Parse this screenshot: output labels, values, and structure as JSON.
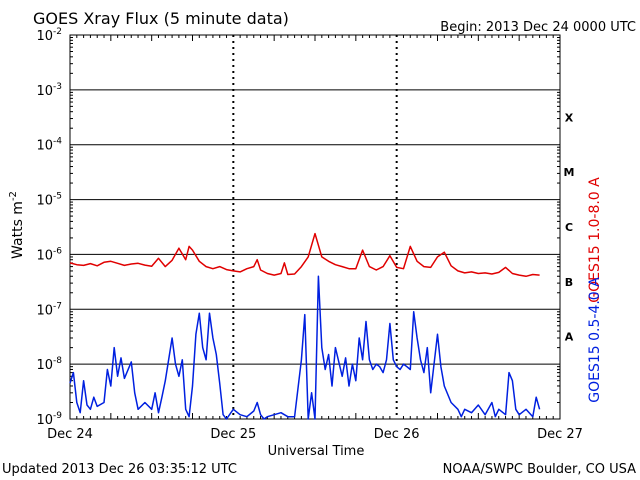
{
  "header": {
    "title": "GOES Xray Flux (5 minute data)",
    "begin": "Begin:  2013 Dec 24 0000 UTC"
  },
  "footer": {
    "updated": "Updated 2013 Dec 26 03:35:12 UTC",
    "source": "NOAA/SWPC Boulder, CO USA"
  },
  "chart_data": {
    "type": "line",
    "title": "GOES Xray Flux (5 minute data)",
    "xlabel": "Universal Time",
    "ylabel": "Watts m",
    "ylabel_superscript": "-2",
    "y_scale": "log",
    "ylim": [
      1e-09,
      0.01
    ],
    "y_ticks": [
      {
        "base": "10",
        "exp": "-9"
      },
      {
        "base": "10",
        "exp": "-8"
      },
      {
        "base": "10",
        "exp": "-7"
      },
      {
        "base": "10",
        "exp": "-6"
      },
      {
        "base": "10",
        "exp": "-5"
      },
      {
        "base": "10",
        "exp": "-4"
      },
      {
        "base": "10",
        "exp": "-3"
      },
      {
        "base": "10",
        "exp": "-2"
      }
    ],
    "x_ticks": [
      "Dec 24",
      "Dec 25",
      "Dec 26",
      "Dec 27"
    ],
    "x_unit": "hours since 2013 Dec 24 0000 UTC",
    "xlim": [
      0,
      72
    ],
    "flare_classes": [
      "A",
      "B",
      "C",
      "M",
      "X"
    ],
    "grid": true,
    "series": [
      {
        "name": "GOES15 1.0-8.0 A",
        "color": "#e00000",
        "points": [
          [
            0,
            7e-07
          ],
          [
            1,
            6.5e-07
          ],
          [
            2,
            6.3e-07
          ],
          [
            3,
            6.8e-07
          ],
          [
            4,
            6.2e-07
          ],
          [
            5,
            7.2e-07
          ],
          [
            6,
            7.5e-07
          ],
          [
            7,
            6.9e-07
          ],
          [
            8,
            6.3e-07
          ],
          [
            9,
            6.7e-07
          ],
          [
            10,
            6.9e-07
          ],
          [
            11,
            6.4e-07
          ],
          [
            12,
            6.1e-07
          ],
          [
            13,
            8.5e-07
          ],
          [
            14,
            6e-07
          ],
          [
            15,
            7.8e-07
          ],
          [
            16,
            1.3e-06
          ],
          [
            17,
            8e-07
          ],
          [
            17.5,
            1.4e-06
          ],
          [
            18,
            1.2e-06
          ],
          [
            19,
            7.5e-07
          ],
          [
            20,
            6e-07
          ],
          [
            21,
            5.5e-07
          ],
          [
            22,
            6e-07
          ],
          [
            23,
            5.3e-07
          ],
          [
            24,
            5e-07
          ],
          [
            25,
            4.8e-07
          ],
          [
            26,
            5.5e-07
          ],
          [
            27,
            6e-07
          ],
          [
            27.5,
            8e-07
          ],
          [
            28,
            5.2e-07
          ],
          [
            29,
            4.5e-07
          ],
          [
            30,
            4.2e-07
          ],
          [
            31,
            4.5e-07
          ],
          [
            31.5,
            7e-07
          ],
          [
            32,
            4.3e-07
          ],
          [
            33,
            4.4e-07
          ],
          [
            34,
            6e-07
          ],
          [
            35,
            9e-07
          ],
          [
            36,
            2.4e-06
          ],
          [
            37,
            9e-07
          ],
          [
            38,
            7.5e-07
          ],
          [
            39,
            6.5e-07
          ],
          [
            40,
            6e-07
          ],
          [
            41,
            5.5e-07
          ],
          [
            42,
            5.5e-07
          ],
          [
            43,
            1.2e-06
          ],
          [
            44,
            6e-07
          ],
          [
            45,
            5.2e-07
          ],
          [
            46,
            6e-07
          ],
          [
            47,
            9.5e-07
          ],
          [
            48,
            5.8e-07
          ],
          [
            49,
            5.5e-07
          ],
          [
            50,
            1.4e-06
          ],
          [
            51,
            7.5e-07
          ],
          [
            52,
            6e-07
          ],
          [
            53,
            5.8e-07
          ],
          [
            54,
            9e-07
          ],
          [
            55,
            1.1e-06
          ],
          [
            56,
            6.2e-07
          ],
          [
            57,
            5e-07
          ],
          [
            58,
            4.6e-07
          ],
          [
            59,
            4.8e-07
          ],
          [
            60,
            4.5e-07
          ],
          [
            61,
            4.6e-07
          ],
          [
            62,
            4.4e-07
          ],
          [
            63,
            4.7e-07
          ],
          [
            64,
            5.8e-07
          ],
          [
            65,
            4.5e-07
          ],
          [
            66,
            4.2e-07
          ],
          [
            67,
            4e-07
          ],
          [
            68,
            4.3e-07
          ],
          [
            69,
            4.2e-07
          ]
        ]
      },
      {
        "name": "GOES15 0.5-4.0 A",
        "color": "#0020e0",
        "points": [
          [
            0,
            4.5e-09
          ],
          [
            0.5,
            7e-09
          ],
          [
            1,
            2e-09
          ],
          [
            1.5,
            1.3e-09
          ],
          [
            2,
            5e-09
          ],
          [
            2.5,
            1.8e-09
          ],
          [
            3,
            1.5e-09
          ],
          [
            3.5,
            2.5e-09
          ],
          [
            4,
            1.7e-09
          ],
          [
            5,
            2e-09
          ],
          [
            5.5,
            8e-09
          ],
          [
            6,
            4e-09
          ],
          [
            6.5,
            2e-08
          ],
          [
            7,
            6e-09
          ],
          [
            7.5,
            1.3e-08
          ],
          [
            8,
            5.5e-09
          ],
          [
            9,
            1.1e-08
          ],
          [
            9.5,
            3e-09
          ],
          [
            10,
            1.5e-09
          ],
          [
            11,
            2e-09
          ],
          [
            12,
            1.5e-09
          ],
          [
            12.5,
            3e-09
          ],
          [
            13,
            1.3e-09
          ],
          [
            13.5,
            2.5e-09
          ],
          [
            14,
            5e-09
          ],
          [
            15,
            3e-08
          ],
          [
            15.5,
            1e-08
          ],
          [
            16,
            6e-09
          ],
          [
            16.5,
            1.2e-08
          ],
          [
            17,
            1.5e-09
          ],
          [
            17.5,
            1.1e-09
          ],
          [
            18,
            4e-09
          ],
          [
            18.5,
            3.5e-08
          ],
          [
            19,
            8.5e-08
          ],
          [
            19.5,
            2e-08
          ],
          [
            20,
            1.2e-08
          ],
          [
            20.5,
            8.5e-08
          ],
          [
            21,
            3e-08
          ],
          [
            21.5,
            1.5e-08
          ],
          [
            22,
            4.5e-09
          ],
          [
            22.5,
            1.2e-09
          ],
          [
            23,
            1e-09
          ],
          [
            24,
            1.5e-09
          ],
          [
            25,
            1.2e-09
          ],
          [
            26,
            1.1e-09
          ],
          [
            27,
            1.4e-09
          ],
          [
            27.5,
            2e-09
          ],
          [
            28,
            1.2e-09
          ],
          [
            28.5,
            1e-09
          ],
          [
            29,
            1.1e-09
          ],
          [
            30,
            1.2e-09
          ],
          [
            31,
            1.3e-09
          ],
          [
            32,
            1.1e-09
          ],
          [
            33,
            1.1e-09
          ],
          [
            34,
            1.2e-08
          ],
          [
            34.5,
            8e-08
          ],
          [
            35,
            1e-09
          ],
          [
            35.5,
            3e-09
          ],
          [
            36,
            1e-09
          ],
          [
            36.5,
            4e-07
          ],
          [
            37,
            2e-08
          ],
          [
            37.5,
            8e-09
          ],
          [
            38,
            1.5e-08
          ],
          [
            38.5,
            4e-09
          ],
          [
            39,
            2e-08
          ],
          [
            40,
            6e-09
          ],
          [
            40.5,
            1.3e-08
          ],
          [
            41,
            4e-09
          ],
          [
            41.5,
            1e-08
          ],
          [
            42,
            5e-09
          ],
          [
            42.5,
            3e-08
          ],
          [
            43,
            1.2e-08
          ],
          [
            43.5,
            6e-08
          ],
          [
            44,
            1.2e-08
          ],
          [
            44.5,
            8e-09
          ],
          [
            45,
            1e-08
          ],
          [
            45.5,
            9e-09
          ],
          [
            46,
            7e-09
          ],
          [
            46.5,
            1.2e-08
          ],
          [
            47,
            5.5e-08
          ],
          [
            47.5,
            1.2e-08
          ],
          [
            48,
            9e-09
          ],
          [
            48.5,
            8e-09
          ],
          [
            49,
            1e-08
          ],
          [
            49.5,
            9e-09
          ],
          [
            50,
            8e-09
          ],
          [
            50.5,
            9e-08
          ],
          [
            51,
            3e-08
          ],
          [
            51.5,
            1.2e-08
          ],
          [
            52,
            7e-09
          ],
          [
            52.5,
            2e-08
          ],
          [
            53,
            3e-09
          ],
          [
            54,
            3.5e-08
          ],
          [
            54.5,
            9e-09
          ],
          [
            55,
            4e-09
          ],
          [
            56,
            2e-09
          ],
          [
            57,
            1.5e-09
          ],
          [
            57.5,
            1.1e-09
          ],
          [
            58,
            1.5e-09
          ],
          [
            59,
            1.3e-09
          ],
          [
            60,
            1.8e-09
          ],
          [
            61,
            1.2e-09
          ],
          [
            62,
            2e-09
          ],
          [
            62.5,
            1.1e-09
          ],
          [
            63,
            1.5e-09
          ],
          [
            64,
            1.2e-09
          ],
          [
            64.5,
            7e-09
          ],
          [
            65,
            5e-09
          ],
          [
            65.5,
            1.5e-09
          ],
          [
            66,
            1.2e-09
          ],
          [
            67,
            1.5e-09
          ],
          [
            68,
            1.1e-09
          ],
          [
            68.5,
            2.5e-09
          ],
          [
            69,
            1.5e-09
          ]
        ]
      }
    ]
  }
}
